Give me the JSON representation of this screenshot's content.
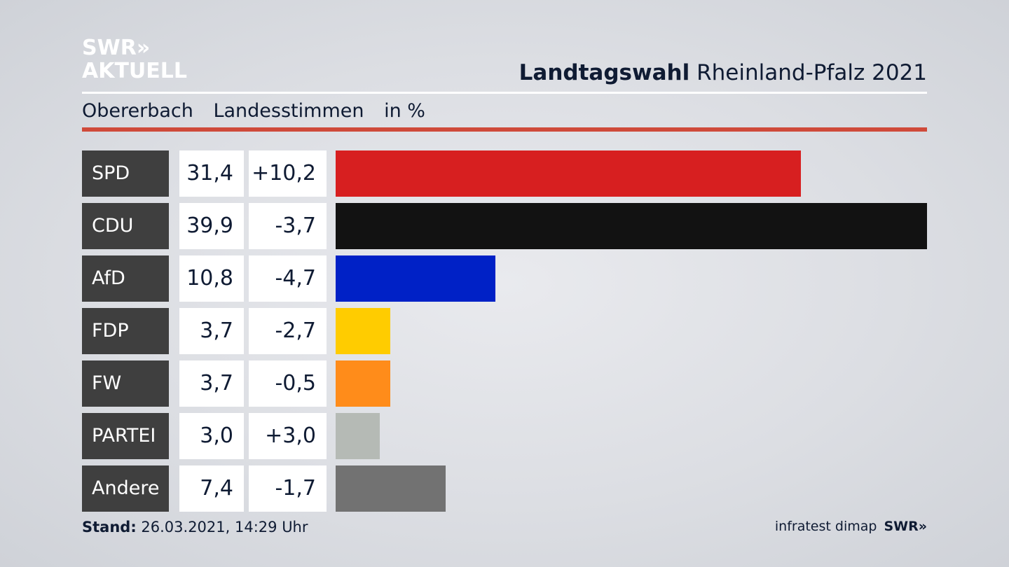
{
  "logo": {
    "line1": "SWR",
    "arrows": "»",
    "line2": "AKTUELL"
  },
  "header": {
    "title_bold": "Landtagswahl",
    "title_rest": "Rheinland-Pfalz 2021"
  },
  "subheader": {
    "place": "Obererbach",
    "vote_type": "Landesstimmen",
    "unit": "in %"
  },
  "chart_data": {
    "type": "bar",
    "title": "Landtagswahl Rheinland-Pfalz 2021",
    "subtitle": "Obererbach Landesstimmen in %",
    "categories": [
      "SPD",
      "CDU",
      "AfD",
      "FDP",
      "FW",
      "PARTEI",
      "Andere"
    ],
    "values": [
      31.4,
      39.9,
      10.8,
      3.7,
      3.7,
      3.0,
      7.4
    ],
    "value_labels": [
      "31,4",
      "39,9",
      "10,8",
      "3,7",
      "3,7",
      "3,0",
      "7,4"
    ],
    "diff_labels": [
      "+10,2",
      "-3,7",
      "-4,7",
      "-2,7",
      "-0,5",
      "+3,0",
      "-1,7"
    ],
    "colors": [
      "#d71f20",
      "#121212",
      "#0021c6",
      "#ffcc00",
      "#ff8c1a",
      "#b5bab5",
      "#727272"
    ],
    "xlim": [
      0,
      39.9
    ],
    "orientation": "horizontal"
  },
  "footer": {
    "stand_label": "Stand:",
    "stand_value": "26.03.2021, 14:29 Uhr",
    "source": "infratest dimap",
    "brand": "SWR"
  }
}
